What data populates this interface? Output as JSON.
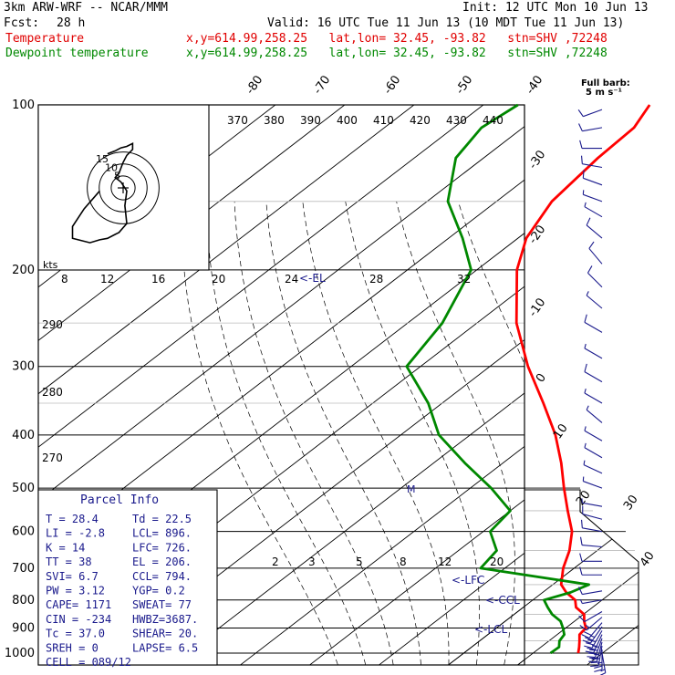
{
  "header": {
    "model": "3km ARW-WRF -- NCAR/MMM",
    "init": "Init: 12 UTC Mon 10 Jun 13",
    "fcst_label": "Fcst:",
    "fcst_value": "28 h",
    "valid": "Valid: 16 UTC Tue 11 Jun 13 (10 MDT Tue 11 Jun 13)",
    "temp_label": "Temperature",
    "dew_label": "Dewpoint temperature",
    "loc_info": "x,y=614.99,258.25   lat,lon= 32.45, -93.82   stn=SHV ,72248"
  },
  "chart_data": {
    "type": "line",
    "xlabel": "",
    "ylabel": "",
    "pressure_ticks": [
      100,
      200,
      300,
      400,
      500,
      600,
      700,
      800,
      900,
      1000
    ],
    "isotherm_labels_top": [
      -80,
      -70,
      -60,
      -50,
      -40
    ],
    "isotherm_labels_right": [
      -30,
      -20,
      -10,
      0,
      10,
      20,
      30,
      40
    ],
    "theta_labels": [
      "370",
      "380",
      "390",
      "400",
      "410",
      "420",
      "430",
      "440"
    ],
    "dry_adiabat_labels": [
      "290",
      "280",
      "270"
    ],
    "moist_labels": [
      "8",
      "12",
      "16",
      "20",
      "24",
      "28",
      "32"
    ],
    "mixing_labels": [
      "2",
      "3",
      "5",
      "8",
      "12",
      "20"
    ],
    "hodo_label": "kts",
    "hodo_rings": [
      "5",
      "10",
      "15"
    ],
    "wind_legend": "Full barb:",
    "wind_legend2": "5 m s⁻¹",
    "level_markers": {
      "el": "<-EL",
      "lfc": "<-LFC",
      "ccl": "<-CCL",
      "lcl": "<-LCL",
      "mark": "M"
    },
    "series": [
      {
        "name": "Temperature",
        "color": "#ff0000",
        "points": [
          [
            1000,
            26.5
          ],
          [
            975,
            25.5
          ],
          [
            950,
            24.4
          ],
          [
            925,
            23.2
          ],
          [
            900,
            22.9
          ],
          [
            875,
            21.4
          ],
          [
            850,
            20.1
          ],
          [
            825,
            17.6
          ],
          [
            800,
            16.1
          ],
          [
            775,
            13.4
          ],
          [
            750,
            11.2
          ],
          [
            700,
            8.4
          ],
          [
            650,
            6.0
          ],
          [
            600,
            2.8
          ],
          [
            550,
            -1.7
          ],
          [
            500,
            -6.5
          ],
          [
            450,
            -11.6
          ],
          [
            400,
            -17.7
          ],
          [
            350,
            -25.4
          ],
          [
            300,
            -34.5
          ],
          [
            250,
            -44.3
          ],
          [
            200,
            -54.2
          ],
          [
            175,
            -58.8
          ],
          [
            150,
            -62.0
          ],
          [
            125,
            -63.5
          ],
          [
            110,
            -64.0
          ],
          [
            100,
            -66.0
          ]
        ]
      },
      {
        "name": "Dewpoint temperature",
        "color": "#008800",
        "points": [
          [
            1000,
            22.5
          ],
          [
            975,
            22.6
          ],
          [
            950,
            21.5
          ],
          [
            925,
            21.0
          ],
          [
            900,
            19.6
          ],
          [
            875,
            18.0
          ],
          [
            850,
            15.5
          ],
          [
            825,
            13.5
          ],
          [
            800,
            11.6
          ],
          [
            775,
            14.0
          ],
          [
            750,
            15.2
          ],
          [
            700,
            -3.5
          ],
          [
            650,
            -4.5
          ],
          [
            600,
            -9.0
          ],
          [
            550,
            -10.0
          ],
          [
            500,
            -17.0
          ],
          [
            450,
            -25.5
          ],
          [
            400,
            -34.5
          ],
          [
            350,
            -42.0
          ],
          [
            300,
            -52.0
          ],
          [
            250,
            -55.0
          ],
          [
            200,
            -60.8
          ],
          [
            175,
            -68.0
          ],
          [
            150,
            -77.0
          ],
          [
            125,
            -84.0
          ],
          [
            110,
            -86.0
          ],
          [
            100,
            -85.0
          ]
        ]
      }
    ],
    "hodograph": [
      [
        1.0,
        1.0
      ],
      [
        -3.0,
        7.0
      ],
      [
        -6.0,
        13.0
      ],
      [
        -6.0,
        17.0
      ],
      [
        -1.5,
        18.5
      ],
      [
        1.0,
        17.5
      ],
      [
        3.0,
        17.0
      ],
      [
        6.0,
        15.0
      ],
      [
        8.0,
        12.0
      ],
      [
        7.5,
        6.0
      ],
      [
        8.0,
        1.0
      ],
      [
        6.5,
        -2.0
      ],
      [
        5.0,
        -3.5
      ],
      [
        6.0,
        -5.0
      ],
      [
        7.0,
        -8.5
      ],
      [
        8.0,
        -11.0
      ],
      [
        9.5,
        -13.0
      ],
      [
        9.5,
        -15.0
      ],
      [
        8.0,
        -14.0
      ],
      [
        6.5,
        -13.5
      ],
      [
        5.0,
        -12.5
      ],
      [
        3.0,
        -11.5
      ]
    ],
    "winds": [
      {
        "p": 1000,
        "dir": 170,
        "spd": 8
      },
      {
        "p": 985,
        "dir": 180,
        "spd": 13
      },
      {
        "p": 970,
        "dir": 190,
        "spd": 15
      },
      {
        "p": 955,
        "dir": 195,
        "spd": 17
      },
      {
        "p": 940,
        "dir": 200,
        "spd": 18
      },
      {
        "p": 925,
        "dir": 205,
        "spd": 17
      },
      {
        "p": 910,
        "dir": 210,
        "spd": 15
      },
      {
        "p": 895,
        "dir": 215,
        "spd": 13
      },
      {
        "p": 880,
        "dir": 220,
        "spd": 10
      },
      {
        "p": 860,
        "dir": 230,
        "spd": 8
      },
      {
        "p": 840,
        "dir": 240,
        "spd": 5
      },
      {
        "p": 800,
        "dir": 260,
        "spd": 4
      },
      {
        "p": 770,
        "dir": 260,
        "spd": 5
      },
      {
        "p": 720,
        "dir": 270,
        "spd": 5
      },
      {
        "p": 680,
        "dir": 270,
        "spd": 5
      },
      {
        "p": 640,
        "dir": 275,
        "spd": 5
      },
      {
        "p": 600,
        "dir": 280,
        "spd": 5
      },
      {
        "p": 570,
        "dir": 285,
        "spd": 5
      },
      {
        "p": 540,
        "dir": 280,
        "spd": 6
      },
      {
        "p": 500,
        "dir": 290,
        "spd": 7
      },
      {
        "p": 470,
        "dir": 295,
        "spd": 7
      },
      {
        "p": 440,
        "dir": 300,
        "spd": 7
      },
      {
        "p": 410,
        "dir": 300,
        "spd": 7
      },
      {
        "p": 380,
        "dir": 310,
        "spd": 6
      },
      {
        "p": 350,
        "dir": 300,
        "spd": 6
      },
      {
        "p": 320,
        "dir": 300,
        "spd": 5
      },
      {
        "p": 290,
        "dir": 300,
        "spd": 6
      },
      {
        "p": 260,
        "dir": 300,
        "spd": 5
      },
      {
        "p": 235,
        "dir": 310,
        "spd": 6
      },
      {
        "p": 215,
        "dir": 315,
        "spd": 5
      },
      {
        "p": 195,
        "dir": 320,
        "spd": 5
      },
      {
        "p": 175,
        "dir": 310,
        "spd": 5
      },
      {
        "p": 160,
        "dir": 300,
        "spd": 6
      },
      {
        "p": 150,
        "dir": 290,
        "spd": 6
      },
      {
        "p": 140,
        "dir": 290,
        "spd": 5
      },
      {
        "p": 130,
        "dir": 280,
        "spd": 5
      },
      {
        "p": 120,
        "dir": 270,
        "spd": 5
      },
      {
        "p": 110,
        "dir": 260,
        "spd": 5
      },
      {
        "p": 102,
        "dir": 250,
        "spd": 5
      }
    ]
  },
  "parcel": {
    "title": "Parcel Info",
    "rows": [
      [
        "T  =   28.4",
        "Td =  22.5"
      ],
      [
        "LI =   -2.8",
        "LCL=  896."
      ],
      [
        "K  =     14",
        "LFC=  726."
      ],
      [
        "TT =     38",
        "EL =  206."
      ],
      [
        "SVI=    6.7",
        "CCL=  794."
      ],
      [
        "PW =   3.12",
        "YGP=   0.2"
      ],
      [
        "CAPE=  1171",
        "SWEAT=  77"
      ],
      [
        "CIN =  -234",
        "HWBZ=3687."
      ],
      [
        "Tc =   37.0",
        "SHEAR= 20."
      ],
      [
        "SREH =    0",
        "LAPSE= 6.5"
      ],
      [
        "CELL = 089/12",
        ""
      ]
    ]
  }
}
